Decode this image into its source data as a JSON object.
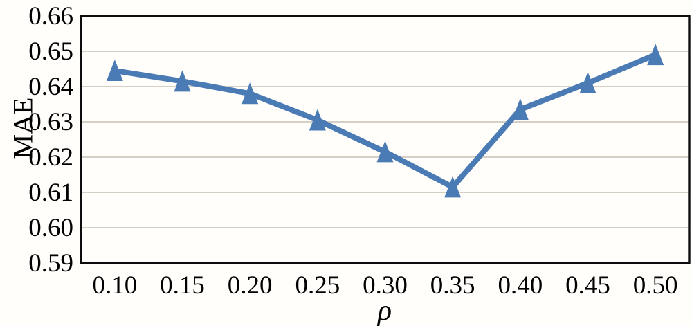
{
  "chart_data": {
    "type": "line",
    "title": "",
    "xlabel": "ρ",
    "ylabel": "MAE",
    "x": [
      0.1,
      0.15,
      0.2,
      0.25,
      0.3,
      0.35,
      0.4,
      0.45,
      0.5
    ],
    "series": [
      {
        "name": "MAE",
        "values": [
          0.6445,
          0.6415,
          0.638,
          0.6305,
          0.6215,
          0.6115,
          0.6335,
          0.641,
          0.649
        ]
      }
    ],
    "x_tick_labels": [
      "0.10",
      "0.15",
      "0.20",
      "0.25",
      "0.30",
      "0.35",
      "0.40",
      "0.45",
      "0.50"
    ],
    "y_tick_labels": [
      "0.59",
      "0.60",
      "0.61",
      "0.62",
      "0.63",
      "0.64",
      "0.65",
      "0.66"
    ],
    "ylim": [
      0.59,
      0.66
    ],
    "y_tick_step": 0.01,
    "grid": "horizontal",
    "legend_position": "none",
    "marker": "triangle-up",
    "colors": {
      "series": "#4b7bb5",
      "gridline": "#d5cfc5",
      "axis_border": "#0d0d0d",
      "background": "#fffefb",
      "text": "#000000"
    }
  }
}
